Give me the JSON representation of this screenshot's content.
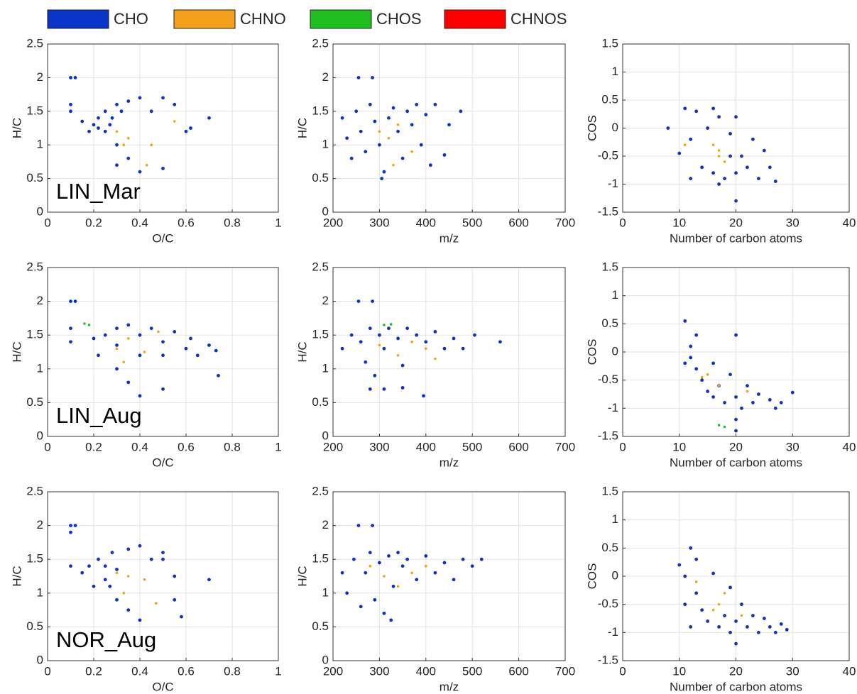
{
  "legend": [
    {
      "name": "CHO",
      "color": "#0a33c8"
    },
    {
      "name": "CHNO",
      "color": "#f5a01a"
    },
    {
      "name": "CHOS",
      "color": "#1fbf1f"
    },
    {
      "name": "CHNOS",
      "color": "#ff0000"
    }
  ],
  "chart_data": [
    {
      "type": "scatter",
      "annotation": "LIN_Mar",
      "xlabel": "O/C",
      "ylabel": "H/C",
      "xlim": [
        0,
        1
      ],
      "ylim": [
        0,
        2.5
      ],
      "xticks": [
        0,
        0.2,
        0.4,
        0.6,
        0.8,
        1
      ],
      "yticks": [
        0,
        0.5,
        1,
        1.5,
        2,
        2.5
      ],
      "grid": true,
      "series": [
        {
          "name": "CHO",
          "color": "#0a33c8",
          "x": [
            0.1,
            0.12,
            0.1,
            0.1,
            0.15,
            0.18,
            0.2,
            0.22,
            0.25,
            0.25,
            0.28,
            0.3,
            0.3,
            0.32,
            0.35,
            0.35,
            0.4,
            0.4,
            0.45,
            0.5,
            0.5,
            0.55,
            0.6,
            0.62,
            0.7,
            0.3,
            0.22,
            0.27
          ],
          "values": [
            2,
            2,
            1.6,
            1.5,
            1.35,
            1.2,
            1.3,
            1.4,
            1.5,
            1.2,
            1.4,
            1.6,
            1,
            1.5,
            1.65,
            0.8,
            1.7,
            0.6,
            1.5,
            1.7,
            0.65,
            1.6,
            1.2,
            1.25,
            1.4,
            0.7,
            1.25,
            1.3
          ]
        },
        {
          "name": "CHNO",
          "color": "#f5a01a",
          "x": [
            0.3,
            0.33,
            0.35,
            0.45,
            0.43,
            0.55
          ],
          "values": [
            1.2,
            1,
            1.1,
            1,
            0.7,
            1.35
          ]
        }
      ]
    },
    {
      "type": "scatter",
      "xlabel": "m/z",
      "ylabel": "H/C",
      "xlim": [
        200,
        700
      ],
      "ylim": [
        0,
        2.5
      ],
      "xticks": [
        200,
        300,
        400,
        500,
        600,
        700
      ],
      "yticks": [
        0,
        0.5,
        1,
        1.5,
        2,
        2.5
      ],
      "grid": true,
      "series": [
        {
          "name": "CHO",
          "color": "#0a33c8",
          "x": [
            255,
            285,
            220,
            230,
            240,
            250,
            260,
            270,
            280,
            290,
            300,
            310,
            320,
            330,
            340,
            350,
            360,
            370,
            380,
            390,
            400,
            410,
            420,
            440,
            450,
            475,
            305
          ],
          "values": [
            2,
            2,
            1.4,
            1.1,
            0.8,
            1.5,
            1.2,
            0.9,
            1.6,
            1.35,
            1,
            0.6,
            1.4,
            1.55,
            1.2,
            0.8,
            1.5,
            1.3,
            1.6,
            1,
            1.45,
            0.7,
            1.6,
            0.85,
            1.3,
            1.5,
            0.5
          ]
        },
        {
          "name": "CHNO",
          "color": "#f5a01a",
          "x": [
            300,
            320,
            330,
            370,
            340
          ],
          "values": [
            1.2,
            1.1,
            0.7,
            0.9,
            1.3
          ]
        }
      ]
    },
    {
      "type": "scatter",
      "xlabel": "Number of carbon atoms",
      "ylabel": "COS",
      "xlim": [
        0,
        40
      ],
      "ylim": [
        -1.5,
        1.5
      ],
      "xticks": [
        0,
        10,
        20,
        30,
        40
      ],
      "yticks": [
        -1.5,
        -1,
        -0.5,
        0,
        0.5,
        1,
        1.5
      ],
      "grid": true,
      "series": [
        {
          "name": "CHO",
          "color": "#0a33c8",
          "x": [
            8,
            11,
            10,
            12,
            13,
            14,
            15,
            16,
            16,
            17,
            18,
            19,
            20,
            20,
            21,
            22,
            23,
            24,
            25,
            26,
            27,
            20,
            12,
            17,
            19
          ],
          "values": [
            0,
            0.35,
            -0.45,
            -0.2,
            0.3,
            -0.7,
            0,
            0.35,
            -0.8,
            0.2,
            -0.9,
            -0.1,
            -0.8,
            0.2,
            -0.5,
            -0.7,
            -0.2,
            -0.9,
            -0.4,
            -0.7,
            -0.95,
            -1.3,
            -0.9,
            -1,
            -0.5
          ]
        },
        {
          "name": "CHNO",
          "color": "#f5a01a",
          "x": [
            11,
            16,
            17,
            18,
            17
          ],
          "values": [
            -0.3,
            -0.3,
            -0.5,
            -0.6,
            -0.4
          ]
        }
      ]
    },
    {
      "type": "scatter",
      "annotation": "LIN_Aug",
      "xlabel": "O/C",
      "ylabel": "H/C",
      "xlim": [
        0,
        1
      ],
      "ylim": [
        0,
        2.5
      ],
      "xticks": [
        0,
        0.2,
        0.4,
        0.6,
        0.8,
        1
      ],
      "yticks": [
        0,
        0.5,
        1,
        1.5,
        2,
        2.5
      ],
      "grid": true,
      "series": [
        {
          "name": "CHO",
          "color": "#0a33c8",
          "x": [
            0.1,
            0.12,
            0.1,
            0.1,
            0.2,
            0.22,
            0.25,
            0.3,
            0.3,
            0.35,
            0.4,
            0.4,
            0.45,
            0.5,
            0.5,
            0.55,
            0.6,
            0.62,
            0.65,
            0.7,
            0.73,
            0.74,
            0.35,
            0.4,
            0.5,
            0.3
          ],
          "values": [
            2,
            2,
            1.6,
            1.4,
            1.45,
            1.2,
            1.5,
            1.6,
            1.35,
            1.65,
            1.5,
            1.2,
            1.6,
            1.4,
            1.2,
            1.55,
            1.3,
            1.45,
            1.2,
            1.35,
            1.27,
            0.9,
            0.8,
            0.6,
            0.7,
            1
          ]
        },
        {
          "name": "CHNO",
          "color": "#f5a01a",
          "x": [
            0.3,
            0.35,
            0.42,
            0.48,
            0.33
          ],
          "values": [
            1.3,
            1.45,
            1.25,
            1.55,
            1.1
          ]
        },
        {
          "name": "CHOS",
          "color": "#1fbf1f",
          "x": [
            0.16,
            0.18
          ],
          "values": [
            1.67,
            1.65
          ]
        }
      ]
    },
    {
      "type": "scatter",
      "xlabel": "m/z",
      "ylabel": "H/C",
      "xlim": [
        200,
        700
      ],
      "ylim": [
        0,
        2.5
      ],
      "xticks": [
        200,
        300,
        400,
        500,
        600,
        700
      ],
      "yticks": [
        0,
        0.5,
        1,
        1.5,
        2,
        2.5
      ],
      "grid": true,
      "series": [
        {
          "name": "CHO",
          "color": "#0a33c8",
          "x": [
            255,
            285,
            220,
            240,
            260,
            270,
            280,
            290,
            300,
            310,
            320,
            340,
            350,
            360,
            380,
            400,
            420,
            440,
            460,
            480,
            505,
            560,
            310,
            350,
            395,
            280
          ],
          "values": [
            2,
            2,
            1.3,
            1.5,
            1.4,
            1.1,
            1.6,
            0.9,
            1.5,
            1.3,
            1.6,
            1.45,
            1.05,
            1.6,
            1.5,
            1.4,
            1.55,
            1.3,
            1.45,
            1.3,
            1.5,
            1.4,
            0.7,
            0.72,
            0.6,
            0.7
          ]
        },
        {
          "name": "CHNO",
          "color": "#f5a01a",
          "x": [
            300,
            340,
            370,
            400,
            420
          ],
          "values": [
            1.35,
            1.2,
            1.4,
            1.3,
            1.15
          ]
        },
        {
          "name": "CHOS",
          "color": "#1fbf1f",
          "x": [
            310,
            325
          ],
          "values": [
            1.65,
            1.66
          ]
        }
      ]
    },
    {
      "type": "scatter",
      "xlabel": "Number of carbon atoms",
      "ylabel": "COS",
      "xlim": [
        0,
        40
      ],
      "ylim": [
        -1.5,
        1.5
      ],
      "xticks": [
        0,
        10,
        20,
        30,
        40
      ],
      "yticks": [
        -1.5,
        -1,
        -0.5,
        0,
        0.5,
        1,
        1.5
      ],
      "grid": true,
      "series": [
        {
          "name": "CHO",
          "color": "#0a33c8",
          "x": [
            11,
            12,
            12,
            13,
            13,
            14,
            15,
            16,
            16,
            17,
            18,
            19,
            20,
            20,
            20,
            21,
            22,
            23,
            24,
            26,
            27,
            28,
            30,
            20,
            11
          ],
          "values": [
            0.55,
            0.1,
            -0.1,
            0.3,
            -0.3,
            -0.5,
            -0.7,
            -0.8,
            -0.2,
            -0.6,
            -0.9,
            -0.4,
            -0.8,
            -1.2,
            0.3,
            -1,
            -0.6,
            -0.9,
            -0.75,
            -0.85,
            -1,
            -0.9,
            -0.72,
            -1.4,
            -0.2
          ]
        },
        {
          "name": "CHNO",
          "color": "#f5a01a",
          "x": [
            14,
            15,
            17,
            22
          ],
          "values": [
            -0.45,
            -0.4,
            -0.6,
            -0.7
          ]
        },
        {
          "name": "CHOS",
          "color": "#1fbf1f",
          "x": [
            17,
            18
          ],
          "values": [
            -1.3,
            -1.33
          ]
        }
      ]
    },
    {
      "type": "scatter",
      "annotation": "NOR_Aug",
      "xlabel": "O/C",
      "ylabel": "H/C",
      "xlim": [
        0,
        1
      ],
      "ylim": [
        0,
        2.5
      ],
      "xticks": [
        0,
        0.2,
        0.4,
        0.6,
        0.8,
        1
      ],
      "yticks": [
        0,
        0.5,
        1,
        1.5,
        2,
        2.5
      ],
      "grid": true,
      "series": [
        {
          "name": "CHO",
          "color": "#0a33c8",
          "x": [
            0.1,
            0.12,
            0.1,
            0.1,
            0.15,
            0.18,
            0.2,
            0.22,
            0.25,
            0.28,
            0.3,
            0.3,
            0.35,
            0.35,
            0.4,
            0.4,
            0.45,
            0.5,
            0.5,
            0.55,
            0.55,
            0.58,
            0.7,
            0.25,
            0.27
          ],
          "values": [
            2,
            2,
            1.9,
            1.4,
            1.3,
            1.4,
            1.1,
            1.5,
            1.2,
            1.6,
            0.9,
            1.35,
            1.65,
            0.75,
            1.7,
            0.6,
            1.5,
            1.6,
            1.5,
            1.25,
            0.9,
            0.65,
            1.2,
            1.4,
            1.1
          ]
        },
        {
          "name": "CHNO",
          "color": "#f5a01a",
          "x": [
            0.3,
            0.33,
            0.35,
            0.42,
            0.47
          ],
          "values": [
            1.3,
            1,
            1.25,
            1.2,
            0.85
          ]
        }
      ]
    },
    {
      "type": "scatter",
      "xlabel": "m/z",
      "ylabel": "H/C",
      "xlim": [
        200,
        700
      ],
      "ylim": [
        0,
        2.5
      ],
      "xticks": [
        200,
        300,
        400,
        500,
        600,
        700
      ],
      "yticks": [
        0,
        0.5,
        1,
        1.5,
        2,
        2.5
      ],
      "grid": true,
      "series": [
        {
          "name": "CHO",
          "color": "#0a33c8",
          "x": [
            255,
            285,
            220,
            230,
            245,
            260,
            270,
            280,
            290,
            300,
            320,
            330,
            340,
            350,
            360,
            380,
            400,
            420,
            440,
            460,
            480,
            500,
            520,
            310,
            325
          ],
          "values": [
            2,
            2,
            1.3,
            1,
            1.5,
            0.8,
            1.3,
            1.6,
            0.9,
            1.45,
            1.55,
            1.1,
            1.6,
            1.4,
            1.5,
            1.2,
            1.55,
            1.3,
            1.45,
            1.2,
            1.5,
            1.4,
            1.5,
            0.7,
            0.6
          ]
        },
        {
          "name": "CHNO",
          "color": "#f5a01a",
          "x": [
            280,
            310,
            340,
            370,
            400
          ],
          "values": [
            1.4,
            1.25,
            1.1,
            1.3,
            1.4
          ]
        }
      ]
    },
    {
      "type": "scatter",
      "xlabel": "Number of carbon atoms",
      "ylabel": "COS",
      "xlim": [
        0,
        40
      ],
      "ylim": [
        -1.5,
        1.5
      ],
      "xticks": [
        0,
        10,
        20,
        30,
        40
      ],
      "yticks": [
        -1.5,
        -1,
        -0.5,
        0,
        0.5,
        1,
        1.5
      ],
      "grid": true,
      "series": [
        {
          "name": "CHO",
          "color": "#0a33c8",
          "x": [
            10,
            11,
            12,
            13,
            13,
            14,
            15,
            16,
            17,
            18,
            19,
            19,
            20,
            21,
            22,
            23,
            24,
            25,
            26,
            27,
            28,
            29,
            20,
            11,
            12
          ],
          "values": [
            0.2,
            0,
            0.5,
            0.3,
            -0.3,
            -0.6,
            -0.8,
            0.05,
            -0.9,
            -0.7,
            -0.2,
            -1,
            -0.8,
            -0.5,
            -0.9,
            -0.7,
            -1,
            -0.75,
            -0.9,
            -1,
            -0.85,
            -0.95,
            -1.2,
            -0.5,
            -0.9
          ]
        },
        {
          "name": "CHNO",
          "color": "#f5a01a",
          "x": [
            13,
            16,
            17,
            18,
            21
          ],
          "values": [
            -0.1,
            -0.6,
            -0.5,
            -0.3,
            -0.7
          ]
        }
      ]
    }
  ]
}
